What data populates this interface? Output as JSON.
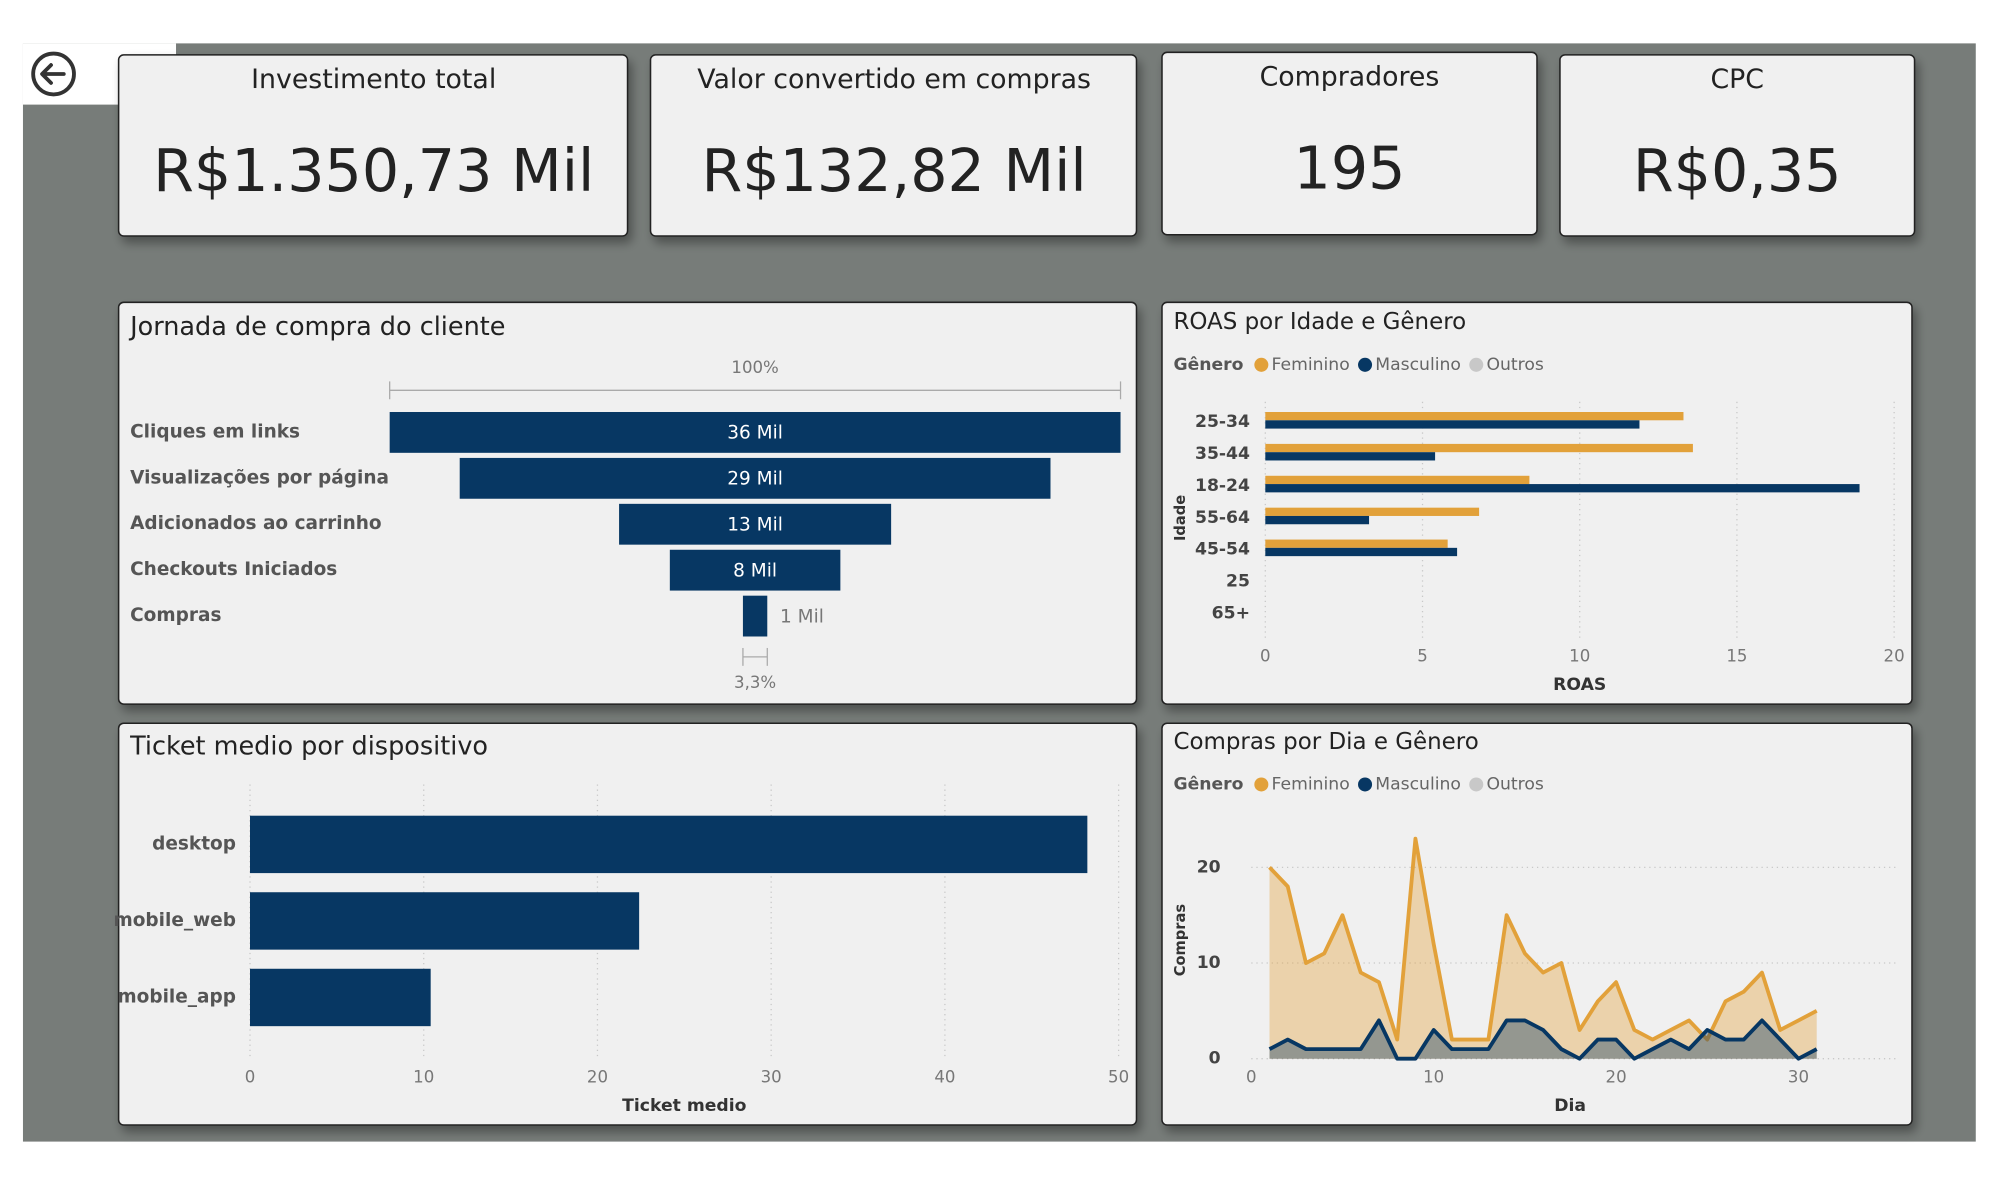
{
  "kpis": [
    {
      "title": "Investimento total",
      "value": "R$1.350,73 Mil"
    },
    {
      "title": "Valor convertido em compras",
      "value": "R$132,82 Mil"
    },
    {
      "title": "Compradores",
      "value": "195"
    },
    {
      "title": "CPC",
      "value": "R$0,35"
    }
  ],
  "chart_data": [
    {
      "type": "funnel",
      "title": "Jornada de compra do cliente",
      "categories": [
        "Cliques em links",
        "Visualizações por página",
        "Adicionados ao carrinho",
        "Checkouts Iniciados",
        "Compras"
      ],
      "values": [
        36000,
        29100,
        13400,
        8400,
        1200
      ],
      "value_labels": [
        "36 Mil",
        "29 Mil",
        "13 Mil",
        "8 Mil",
        "1 Mil"
      ],
      "color": "#073763",
      "top_label": "100%",
      "bottom_label": "3,3%"
    },
    {
      "type": "hbar",
      "title": "ROAS por Idade e Gênero",
      "legend_title": "Gênero",
      "categories": [
        "25-34",
        "35-44",
        "18-24",
        "55-64",
        "45-54",
        "25",
        "65+"
      ],
      "series": [
        {
          "name": "Feminino",
          "color": "#e2a13a",
          "values": [
            13.3,
            13.6,
            8.4,
            6.8,
            5.8,
            null,
            null
          ]
        },
        {
          "name": "Masculino",
          "color": "#073763",
          "values": [
            11.9,
            5.4,
            18.9,
            3.3,
            6.1,
            null,
            null
          ]
        },
        {
          "name": "Outros",
          "color": "#c8c8c8",
          "values": [
            null,
            null,
            null,
            null,
            null,
            null,
            null
          ]
        }
      ],
      "xlim": [
        0,
        20
      ],
      "xticks": [
        0,
        5,
        10,
        15,
        20
      ],
      "x_label": "ROAS",
      "y_label": "Idade",
      "grid": true
    },
    {
      "type": "hbar",
      "title": "Ticket medio por dispositivo",
      "categories": [
        "desktop",
        "mobile_web",
        "mobile_app"
      ],
      "values": [
        48.2,
        22.4,
        10.4
      ],
      "color": "#073763",
      "xlim": [
        0,
        50
      ],
      "xticks": [
        0,
        10,
        20,
        30,
        40,
        50
      ],
      "x_label": "Ticket medio",
      "grid": true
    },
    {
      "type": "area",
      "title": "Compras por Dia e Gênero",
      "legend_title": "Gênero",
      "x": [
        1,
        2,
        3,
        4,
        5,
        6,
        7,
        8,
        9,
        10,
        11,
        12,
        13,
        14,
        15,
        16,
        17,
        18,
        19,
        20,
        21,
        22,
        23,
        24,
        25,
        26,
        27,
        28,
        29,
        30,
        31
      ],
      "series": [
        {
          "name": "Feminino",
          "color": "#e2a13a",
          "values": [
            20,
            18,
            10,
            11,
            15,
            9,
            8,
            2,
            23,
            12,
            2,
            2,
            2,
            15,
            11,
            9,
            10,
            3,
            6,
            8,
            3,
            2,
            3,
            4,
            2,
            6,
            7,
            9,
            3,
            4,
            5
          ]
        },
        {
          "name": "Masculino",
          "color": "#073763",
          "values": [
            1,
            2,
            1,
            1,
            1,
            1,
            4,
            0,
            0,
            3,
            1,
            1,
            1,
            4,
            4,
            3,
            1,
            0,
            2,
            2,
            0,
            1,
            2,
            1,
            3,
            2,
            2,
            4,
            2,
            0,
            1
          ]
        },
        {
          "name": "Outros",
          "color": "#c8c8c8",
          "values": [
            null,
            null,
            null,
            null,
            null,
            null,
            null,
            null,
            null,
            null,
            null,
            null,
            null,
            null,
            null,
            null,
            null,
            null,
            null,
            null,
            null,
            null,
            null,
            null,
            null,
            null,
            null,
            null,
            null,
            null,
            null
          ]
        }
      ],
      "xlim": [
        0,
        35
      ],
      "xticks": [
        0,
        10,
        20,
        30
      ],
      "ylim": [
        0,
        24
      ],
      "yticks": [
        0,
        10,
        20
      ],
      "x_label": "Dia",
      "y_label": "Compras",
      "grid": true
    }
  ]
}
